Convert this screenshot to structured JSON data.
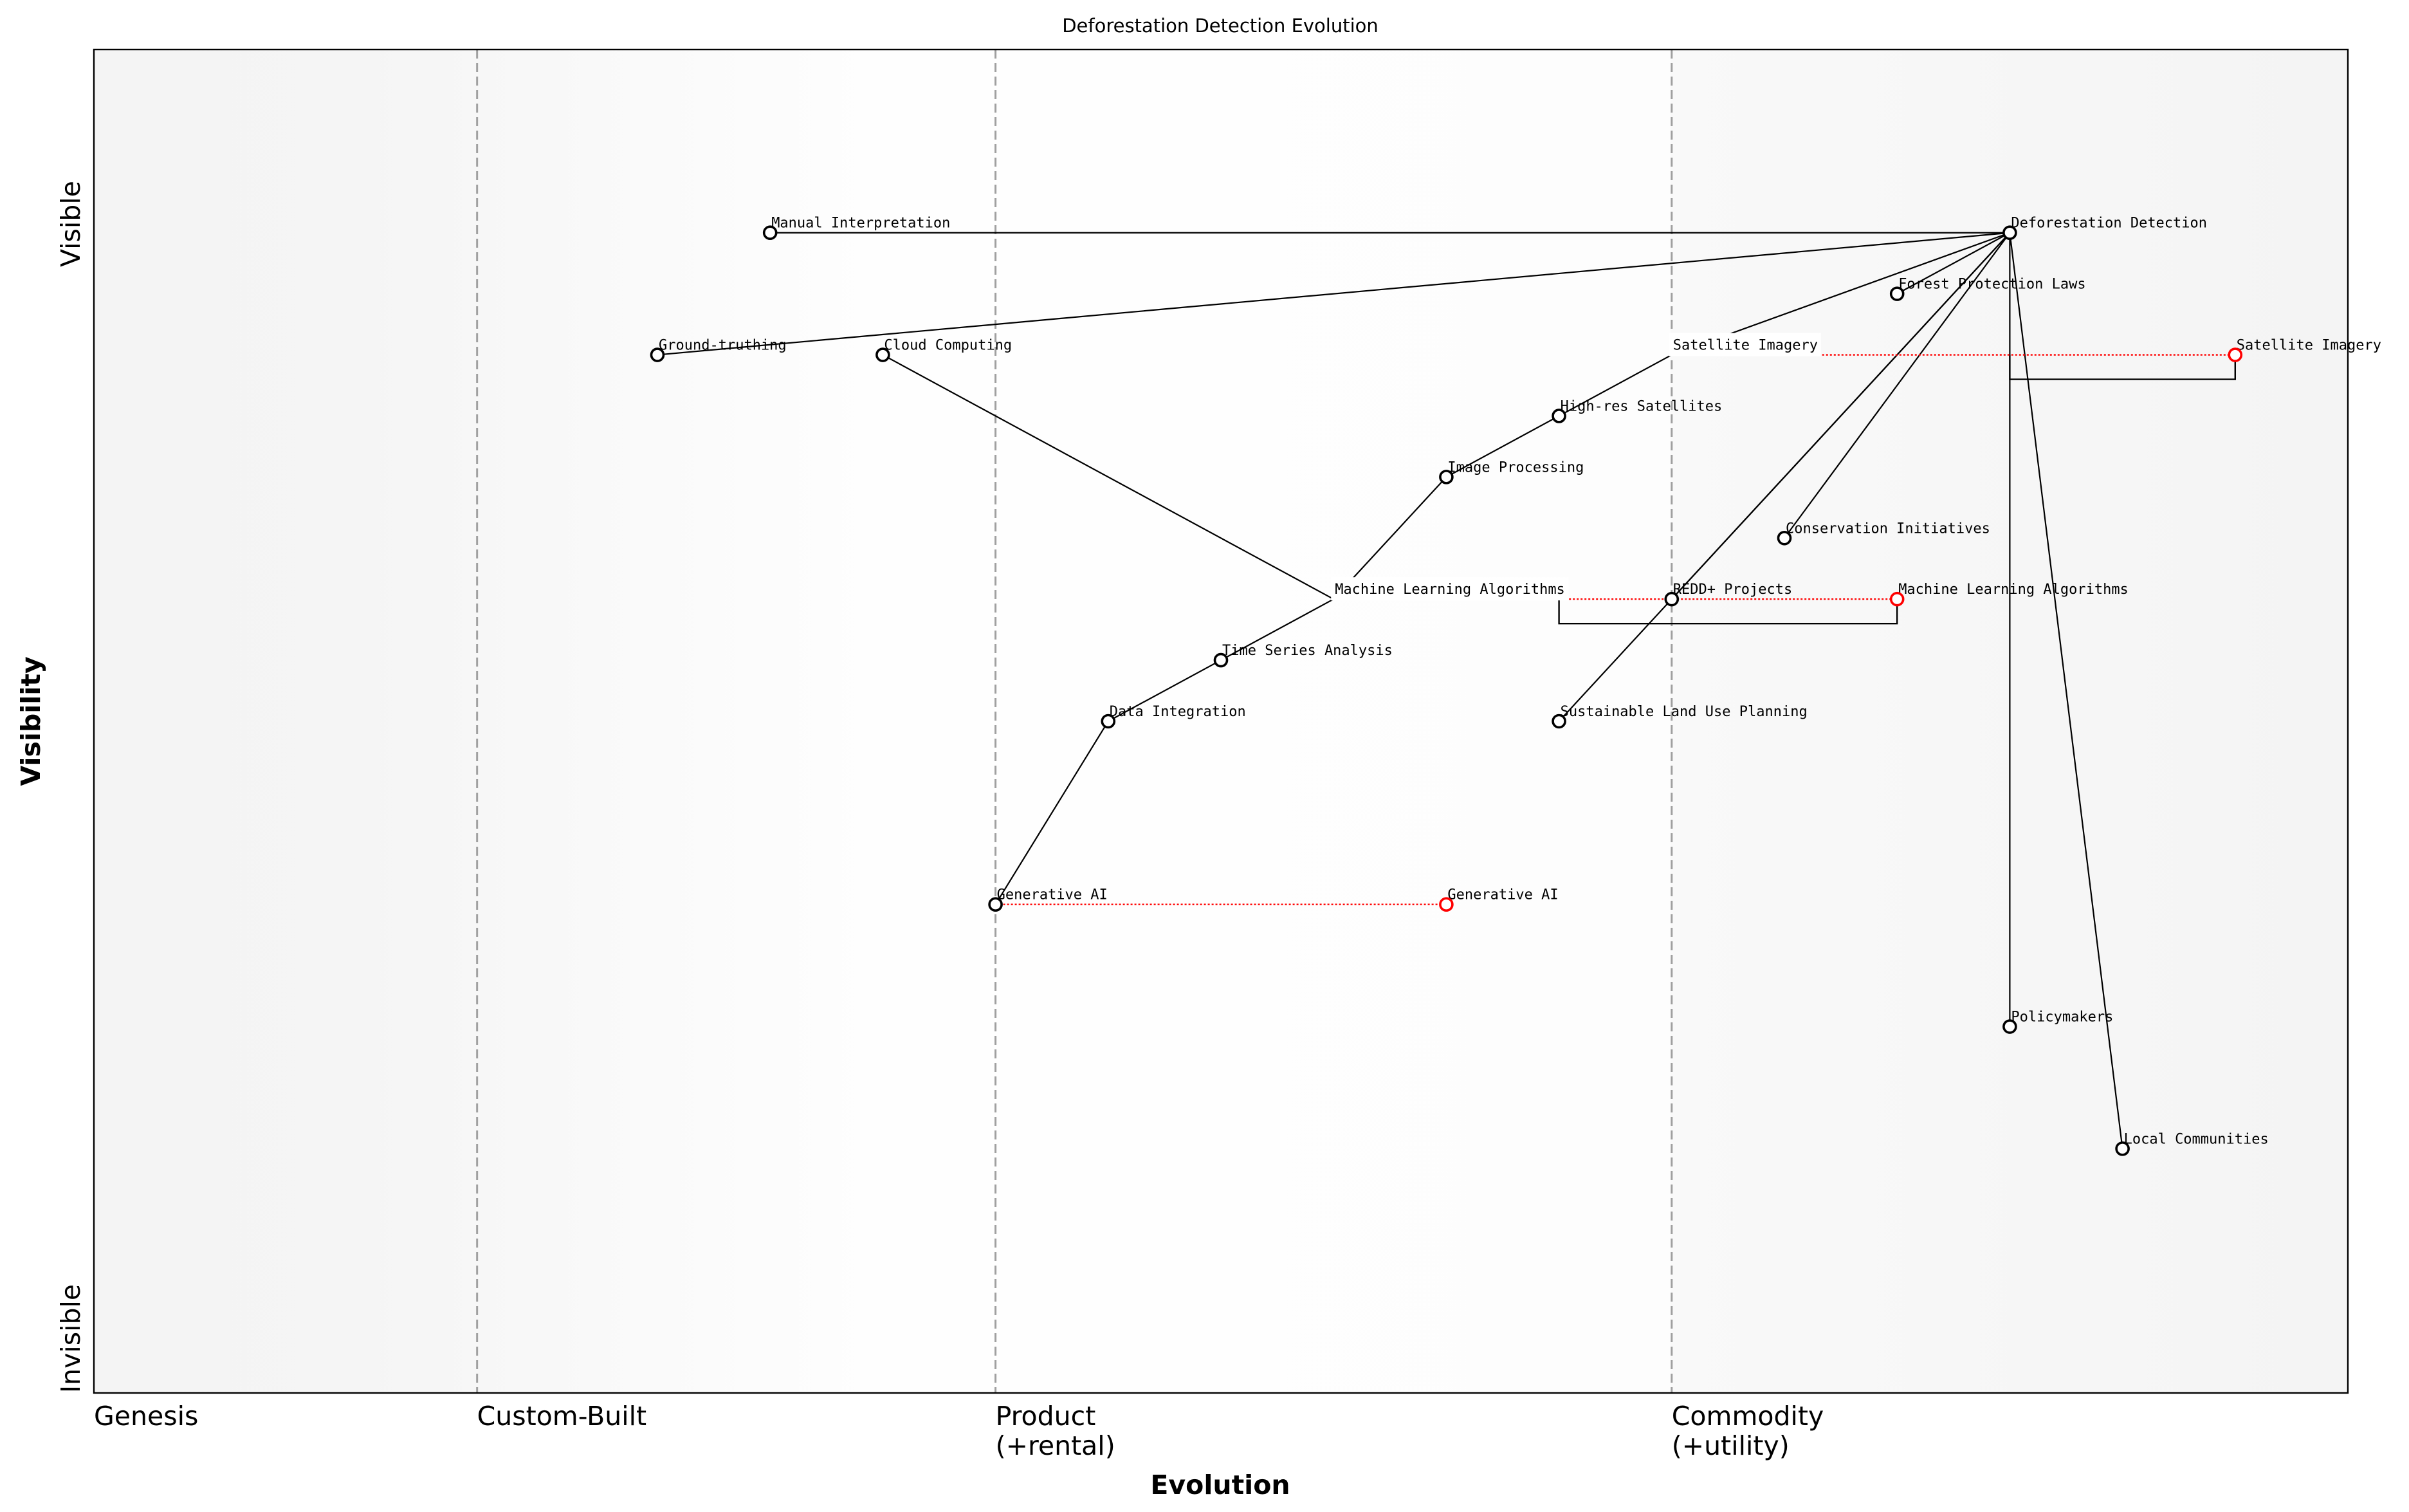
{
  "chart_data": {
    "type": "wardley-map",
    "title": "Deforestation Detection Evolution",
    "xlabel": "Evolution",
    "ylabel": "Visibility",
    "xlim": [
      0,
      1
    ],
    "ylim": [
      0,
      1.1
    ],
    "y_ticks": [
      {
        "label": "Invisible",
        "value": 0
      },
      {
        "label": "Visible",
        "value": 1
      }
    ],
    "stages": [
      {
        "label": "Genesis",
        "value": 0
      },
      {
        "label": "Custom-Built",
        "value": 0.17
      },
      {
        "label": "Product\n(+rental)",
        "value": 0.4
      },
      {
        "label": "Commodity\n(+utility)",
        "value": 0.7
      }
    ],
    "components": [
      {
        "name": "Deforestation Detection",
        "evolution": 0.85,
        "visibility": 0.95
      },
      {
        "name": "Manual Interpretation",
        "evolution": 0.3,
        "visibility": 0.95
      },
      {
        "name": "Forest Protection Laws",
        "evolution": 0.8,
        "visibility": 0.9
      },
      {
        "name": "Ground-truthing",
        "evolution": 0.25,
        "visibility": 0.85
      },
      {
        "name": "Cloud Computing",
        "evolution": 0.35,
        "visibility": 0.85
      },
      {
        "name": "Satellite Imagery",
        "evolution": 0.7,
        "visibility": 0.85,
        "hidden_marker": true
      },
      {
        "name": "High-res Satellites",
        "evolution": 0.65,
        "visibility": 0.8
      },
      {
        "name": "Image Processing",
        "evolution": 0.6,
        "visibility": 0.75
      },
      {
        "name": "Conservation Initiatives",
        "evolution": 0.75,
        "visibility": 0.7
      },
      {
        "name": "Machine Learning Algorithms",
        "evolution": 0.55,
        "visibility": 0.65,
        "hidden_marker": true
      },
      {
        "name": "REDD+ Projects",
        "evolution": 0.7,
        "visibility": 0.65
      },
      {
        "name": "Time Series Analysis",
        "evolution": 0.5,
        "visibility": 0.6
      },
      {
        "name": "Data Integration",
        "evolution": 0.45,
        "visibility": 0.55
      },
      {
        "name": "Sustainable Land Use Planning",
        "evolution": 0.65,
        "visibility": 0.55
      },
      {
        "name": "Generative AI",
        "evolution": 0.4,
        "visibility": 0.4
      },
      {
        "name": "Policymakers",
        "evolution": 0.85,
        "visibility": 0.3
      },
      {
        "name": "Local Communities",
        "evolution": 0.9,
        "visibility": 0.2
      }
    ],
    "links": [
      [
        "Deforestation Detection",
        "Manual Interpretation"
      ],
      [
        "Deforestation Detection",
        "Ground-truthing"
      ],
      [
        "Deforestation Detection",
        "Satellite Imagery"
      ],
      [
        "Deforestation Detection",
        "Forest Protection Laws"
      ],
      [
        "Deforestation Detection",
        "REDD+ Projects"
      ],
      [
        "Deforestation Detection",
        "Sustainable Land Use Planning"
      ],
      [
        "Deforestation Detection",
        "Conservation Initiatives"
      ],
      [
        "Deforestation Detection",
        "Policymakers"
      ],
      [
        "Deforestation Detection",
        "Local Communities"
      ],
      [
        "Satellite Imagery",
        "High-res Satellites"
      ],
      [
        "High-res Satellites",
        "Image Processing"
      ],
      [
        "Image Processing",
        "Machine Learning Algorithms"
      ],
      [
        "Cloud Computing",
        "Machine Learning Algorithms"
      ],
      [
        "Machine Learning Algorithms",
        "Time Series Analysis"
      ],
      [
        "Time Series Analysis",
        "Data Integration"
      ],
      [
        "Data Integration",
        "Generative AI"
      ]
    ],
    "evolutions": [
      {
        "name": "Satellite Imagery",
        "from": 0.7,
        "to": 0.95,
        "visibility": 0.85
      },
      {
        "name": "Machine Learning Algorithms",
        "from": 0.55,
        "to": 0.8,
        "visibility": 0.65
      },
      {
        "name": "Generative AI",
        "from": 0.4,
        "to": 0.6,
        "visibility": 0.4
      }
    ],
    "pipelines": [
      {
        "visibility": 0.85,
        "from": 0.85,
        "to": 0.95
      },
      {
        "visibility": 0.65,
        "from": 0.65,
        "to": 0.8
      }
    ],
    "colors": {
      "component": "#000000",
      "evolved": "#ff0000",
      "stage_line": "#a0a0a0",
      "edge_bg": "#f5f5f5"
    }
  }
}
